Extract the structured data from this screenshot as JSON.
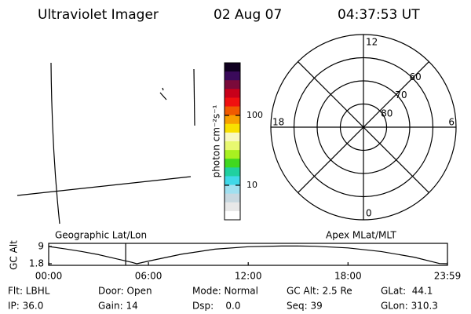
{
  "header": {
    "instrument": "Ultraviolet Imager",
    "date": "02 Aug 07",
    "time": "04:37:53 UT"
  },
  "colorbar": {
    "label": "photon cm⁻²s⁻¹",
    "range": [
      3.2,
      566
    ],
    "log": true,
    "ticks": [
      10,
      100
    ],
    "colors": [
      "#100020",
      "#3a0a5a",
      "#7a0a3a",
      "#c8001a",
      "#f01010",
      "#f05a00",
      "#f8a000",
      "#f8e000",
      "#f8f8c0",
      "#e8f870",
      "#a8f020",
      "#40d820",
      "#20d0a0",
      "#40d8e8",
      "#a0e0f0",
      "#c8d8e0",
      "#e8e8e8",
      "#ffffff"
    ]
  },
  "polar": {
    "mlt_labels": {
      "top": "12",
      "left": "18",
      "right": "6",
      "bottom": "0"
    },
    "lat_labels": [
      60,
      70,
      80
    ]
  },
  "panels": {
    "left": "Geographic Lat/Lon",
    "right": "Apex MLat/MLT"
  },
  "chart_data": {
    "type": "line",
    "ylabel": "GC Alt",
    "color": "#000000",
    "marker_color": "#ff0000",
    "current_time": 4.631,
    "x": [
      0,
      1,
      2,
      3,
      4,
      5,
      5.3,
      6,
      8,
      10,
      12,
      14,
      15,
      16,
      18,
      20,
      22,
      23.5,
      23.98
    ],
    "values": [
      9.0,
      8.0,
      6.9,
      5.6,
      4.0,
      2.4,
      1.8,
      2.9,
      5.8,
      7.9,
      8.9,
      9.2,
      9.2,
      9.1,
      8.4,
      6.9,
      4.5,
      1.9,
      1.8
    ],
    "xlim": [
      0,
      23.98
    ],
    "ylim": [
      1.8,
      9.0
    ],
    "xticks": [
      {
        "value": 0,
        "label": "00:00"
      },
      {
        "value": 6,
        "label": "06:00"
      },
      {
        "value": 12,
        "label": "12:00"
      },
      {
        "value": 18,
        "label": "18:00"
      },
      {
        "value": 23.98,
        "label": "23:59"
      }
    ],
    "yticks": [
      1.8,
      9.0
    ]
  },
  "footer": {
    "rows": [
      [
        "Flt: LBHL",
        "Door: Open",
        "Mode: Normal",
        "GC Alt: 2.5 Re",
        "GLat:  44.1"
      ],
      [
        "IP: 36.0",
        "Gain: 14",
        "Dsp:    0.0",
        "Seq: 39",
        "GLon: 310.3"
      ]
    ]
  }
}
